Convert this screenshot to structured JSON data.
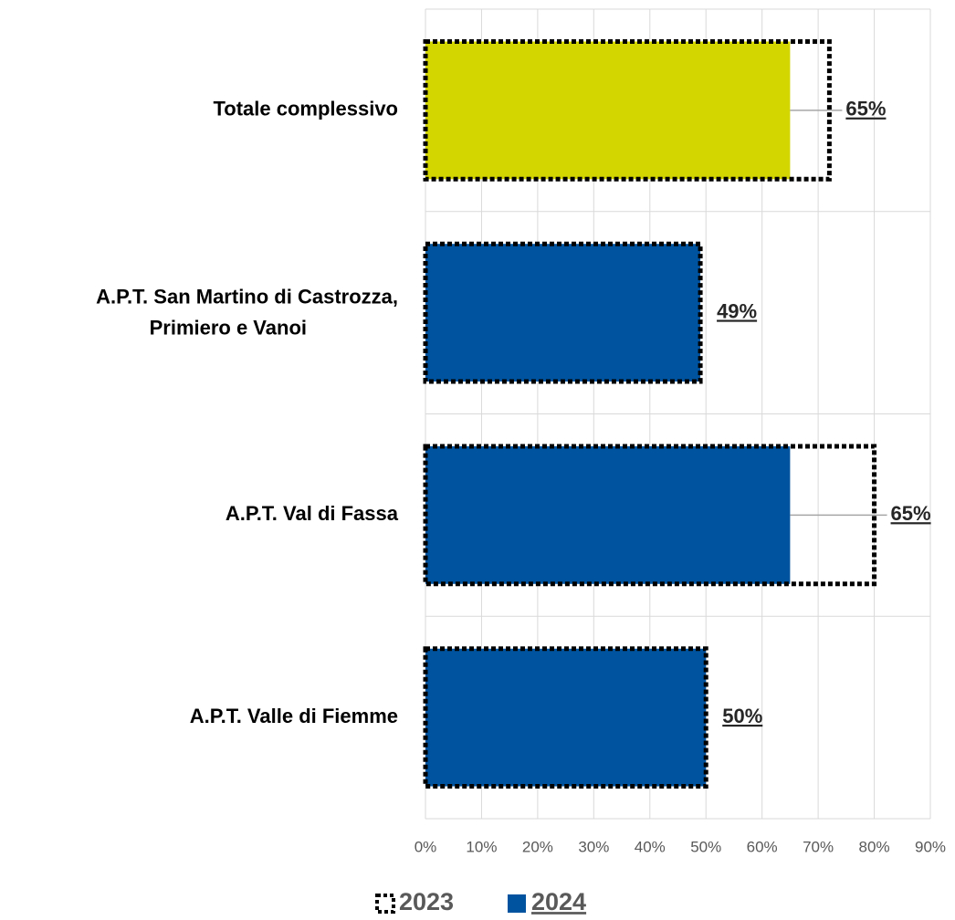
{
  "chart_data": {
    "type": "hbar",
    "categories": [
      "Totale complessivo",
      "A.P.T. San Martino di Castrozza, Primiero e Vanoi",
      "A.P.T. Val di Fassa",
      "A.P.T. Valle di Fiemme"
    ],
    "series": [
      {
        "name": "2023",
        "color": "#000000",
        "values": [
          72,
          49,
          80,
          50
        ]
      },
      {
        "name": "2024",
        "color": "#00549f",
        "colors": [
          "#d4d600",
          "#00549f",
          "#00549f",
          "#00549f"
        ],
        "values": [
          65,
          49,
          65,
          50
        ],
        "value_labels": [
          "65%",
          "49%",
          "65%",
          "50%"
        ]
      }
    ],
    "xlim": [
      0,
      90
    ],
    "xticks": [
      {
        "value": 0,
        "label": "0%"
      },
      {
        "value": 10,
        "label": "10%"
      },
      {
        "value": 20,
        "label": "20%"
      },
      {
        "value": 30,
        "label": "30%"
      },
      {
        "value": 40,
        "label": "40%"
      },
      {
        "value": 50,
        "label": "50%"
      },
      {
        "value": 60,
        "label": "60%"
      },
      {
        "value": 70,
        "label": "70%"
      },
      {
        "value": 80,
        "label": "80%"
      },
      {
        "value": 90,
        "label": "90%"
      }
    ],
    "grid": true,
    "legend": "bottom"
  }
}
